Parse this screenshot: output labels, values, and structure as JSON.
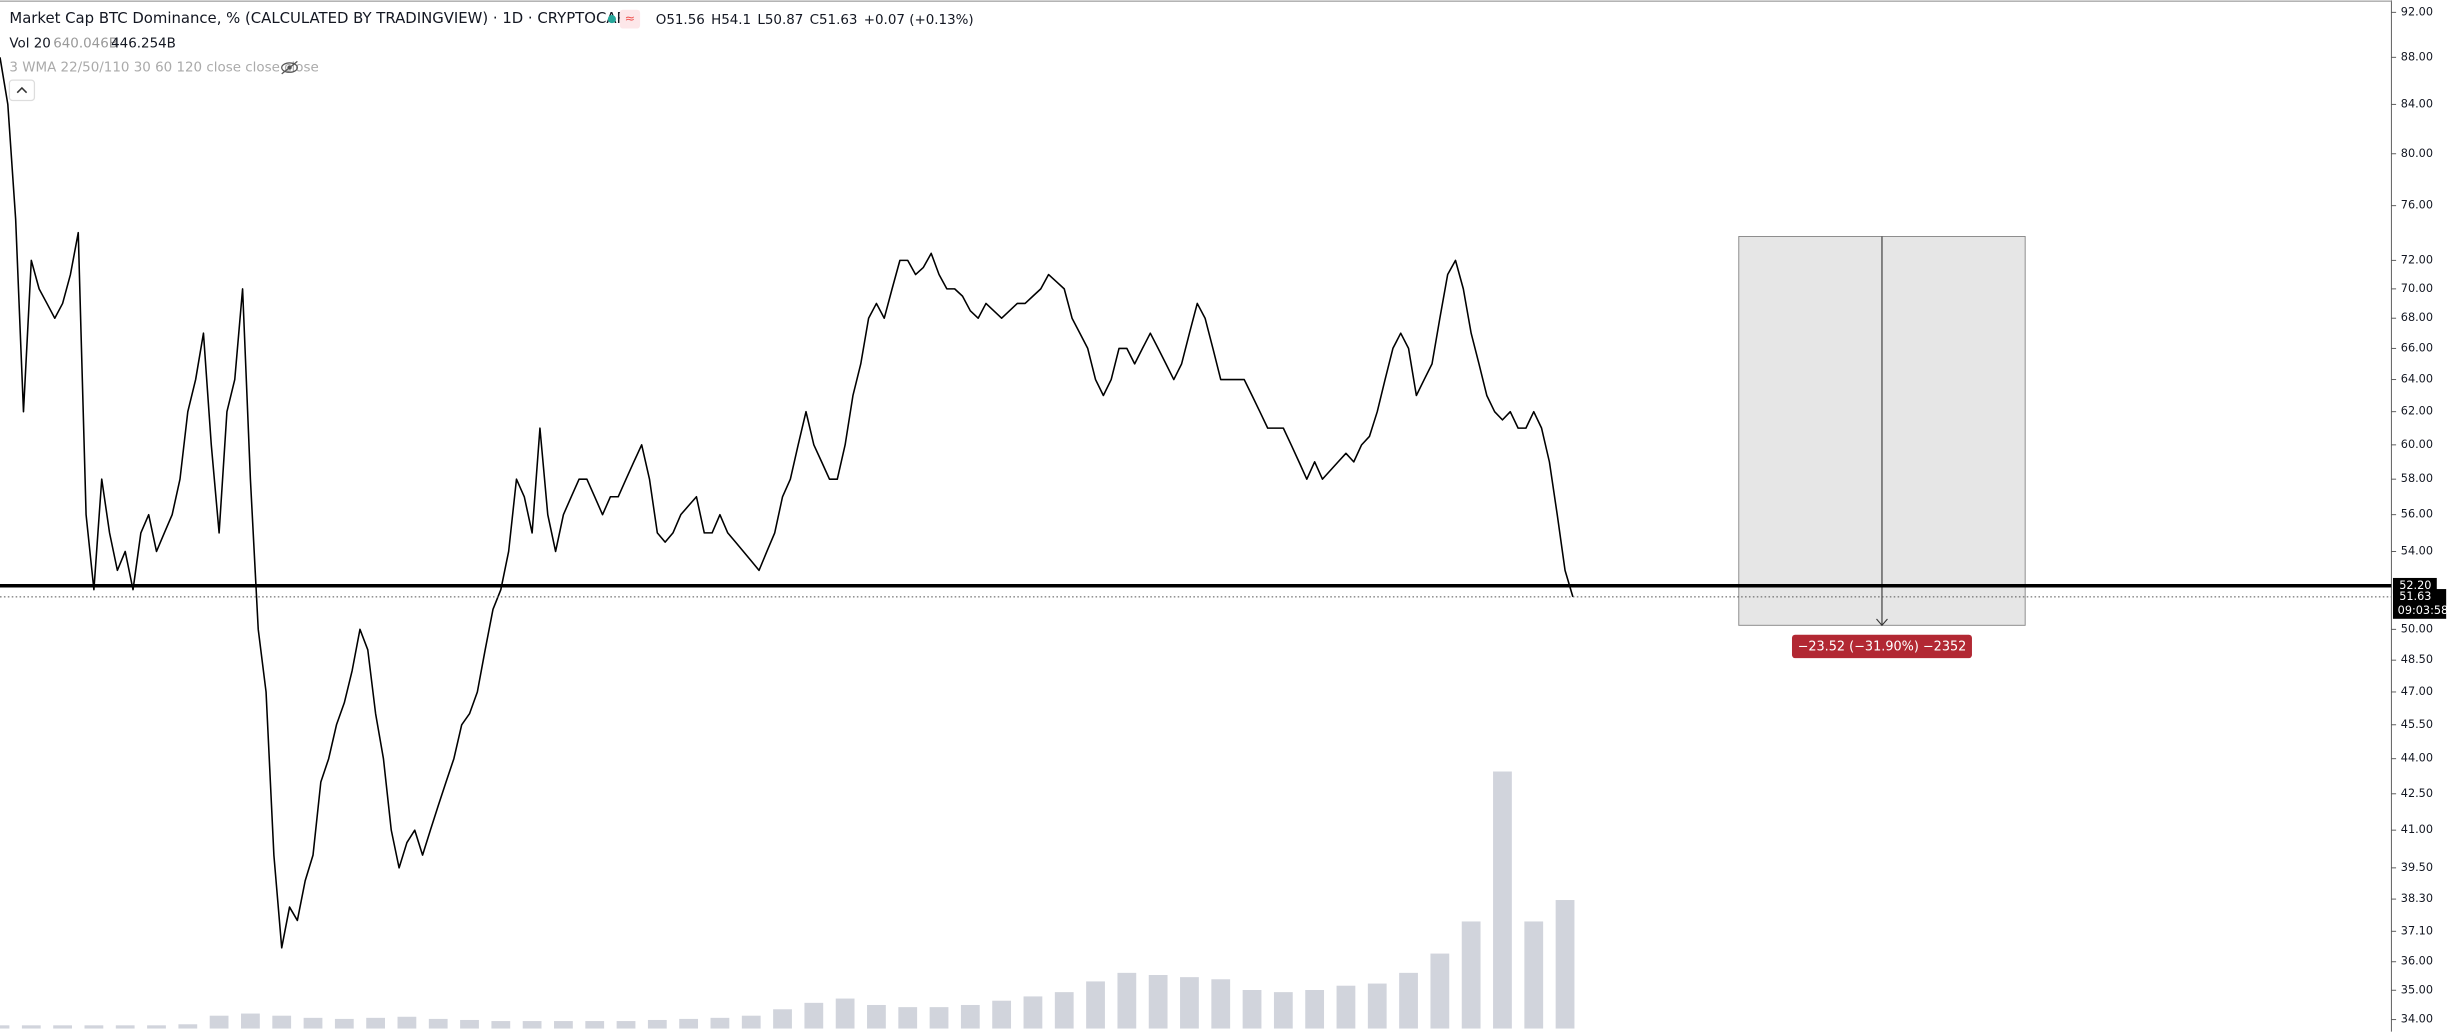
{
  "chart_data": {
    "type": "line",
    "title": "Market Cap BTC Dominance, % (CALCULATED BY TRADINGVIEW) · 1D · CRYPTOCAP",
    "ohlc_labels": [
      "O",
      "H",
      "L",
      "C"
    ],
    "ohlc": [
      51.56,
      54.1,
      50.87,
      51.63
    ],
    "change": "+0.07 (+0.13%)",
    "volume_legend": {
      "name": "Vol 20",
      "values": [
        "640.046B",
        "446.254B"
      ]
    },
    "indicator": "3 WMA 22/50/110 30 60 120 close close close",
    "log_scale": true,
    "color": "#000000",
    "ylim": [
      33.7,
      93.1
    ],
    "yticks": [
      {
        "value": 92,
        "label": "92.00"
      },
      {
        "value": 88,
        "label": "88.00"
      },
      {
        "value": 84,
        "label": "84.00"
      },
      {
        "value": 80,
        "label": "80.00"
      },
      {
        "value": 76,
        "label": "76.00"
      },
      {
        "value": 72,
        "label": "72.00"
      },
      {
        "value": 70,
        "label": "70.00"
      },
      {
        "value": 68,
        "label": "68.00"
      },
      {
        "value": 66,
        "label": "66.00"
      },
      {
        "value": 64,
        "label": "64.00"
      },
      {
        "value": 62,
        "label": "62.00"
      },
      {
        "value": 60,
        "label": "60.00"
      },
      {
        "value": 58,
        "label": "58.00"
      },
      {
        "value": 56,
        "label": "56.00"
      },
      {
        "value": 54,
        "label": "54.00"
      },
      {
        "value": 50,
        "label": "50.00"
      },
      {
        "value": 48.5,
        "label": "48.50"
      },
      {
        "value": 47,
        "label": "47.00"
      },
      {
        "value": 45.5,
        "label": "45.50"
      },
      {
        "value": 44,
        "label": "44.00"
      },
      {
        "value": 42.5,
        "label": "42.50"
      },
      {
        "value": 41,
        "label": "41.00"
      },
      {
        "value": 39.5,
        "label": "39.50"
      },
      {
        "value": 38.3,
        "label": "38.30"
      },
      {
        "value": 37.1,
        "label": "37.10"
      },
      {
        "value": 36,
        "label": "36.00"
      },
      {
        "value": 35,
        "label": "35.00"
      },
      {
        "value": 34,
        "label": "34.00"
      }
    ],
    "values": [
      88,
      84,
      75,
      62,
      72,
      70,
      69,
      68,
      69,
      71,
      74,
      56,
      52,
      58,
      55,
      53,
      54,
      52,
      55,
      56,
      54,
      55,
      56,
      58,
      62,
      64,
      67,
      60,
      55,
      62,
      64,
      70,
      58,
      50,
      47,
      40,
      36.5,
      38,
      37.5,
      39,
      40,
      43,
      44,
      45.5,
      46.5,
      48,
      50,
      49,
      46,
      44,
      41,
      39.5,
      40.5,
      41,
      40,
      41,
      42,
      43,
      44,
      45.5,
      46,
      47,
      49,
      51,
      52,
      54,
      58,
      57,
      55,
      61,
      56,
      54,
      56,
      57,
      58,
      58,
      57,
      56,
      57,
      57,
      58,
      59,
      60,
      58,
      55,
      54.5,
      55,
      56,
      56.5,
      57,
      55,
      55,
      56,
      55,
      54.5,
      54,
      53.5,
      53,
      54,
      55,
      57,
      58,
      60,
      62,
      60,
      59,
      58,
      58,
      60,
      63,
      65,
      68,
      69,
      68,
      70,
      72,
      72,
      71,
      71.5,
      72.5,
      71,
      70,
      70,
      69.5,
      68.5,
      68,
      69,
      68.5,
      68,
      68.5,
      69,
      69,
      69.5,
      70,
      71,
      70.5,
      70,
      68,
      67,
      66,
      64,
      63,
      64,
      66,
      66,
      65,
      66,
      67,
      66,
      65,
      64,
      65,
      67,
      69,
      68,
      66,
      64,
      64,
      64,
      64,
      63,
      62,
      61,
      61,
      61,
      60,
      59,
      58,
      59,
      58,
      58.5,
      59,
      59.5,
      59,
      60,
      60.5,
      62,
      64,
      66,
      67,
      66,
      63,
      64,
      65,
      68,
      71,
      72,
      70,
      67,
      65,
      63,
      62,
      61.5,
      62,
      61,
      61,
      62,
      61,
      59,
      56,
      53,
      51.63
    ],
    "volume": {
      "color": "#d1d4dc",
      "ylim": [
        0,
        4800
      ],
      "values": [
        15,
        15,
        15,
        15,
        15,
        15,
        20,
        60,
        70,
        60,
        50,
        45,
        50,
        55,
        45,
        40,
        35,
        35,
        35,
        35,
        35,
        40,
        45,
        50,
        60,
        90,
        120,
        140,
        110,
        100,
        100,
        110,
        130,
        150,
        170,
        220,
        260,
        250,
        240,
        230,
        180,
        170,
        180,
        200,
        210,
        260,
        350,
        500,
        1200,
        500,
        600
      ]
    },
    "hline": {
      "value": 52.2,
      "label": "52.20"
    },
    "last": {
      "value": 51.63,
      "label": "51.63",
      "countdown": "09:03:58"
    },
    "measure": {
      "from": 73.72,
      "to": 50.2,
      "label": "−23.52 (−31.90%) −2352",
      "color": "#b22833"
    }
  }
}
